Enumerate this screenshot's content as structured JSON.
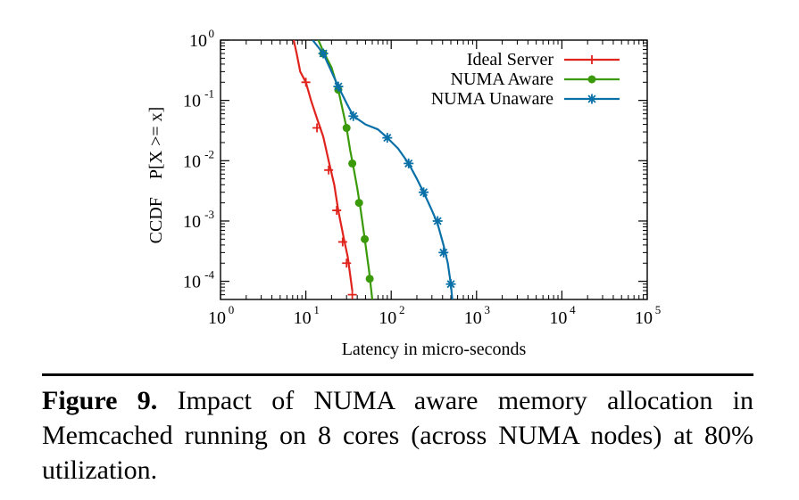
{
  "chart_data": {
    "type": "line",
    "x_scale": "log",
    "y_scale": "log",
    "xlim": [
      1,
      100000
    ],
    "ylim": [
      5e-05,
      1
    ],
    "xlabel": "Latency in micro-seconds",
    "ylabel": "CCDF    P[X >= x]",
    "x_ticks": [
      {
        "base": "10",
        "exp": "0",
        "value": 1
      },
      {
        "base": "10",
        "exp": "1",
        "value": 10
      },
      {
        "base": "10",
        "exp": "2",
        "value": 100
      },
      {
        "base": "10",
        "exp": "3",
        "value": 1000
      },
      {
        "base": "10",
        "exp": "4",
        "value": 10000
      },
      {
        "base": "10",
        "exp": "5",
        "value": 100000
      }
    ],
    "y_ticks": [
      {
        "base": "10",
        "exp": "0",
        "value": 1
      },
      {
        "base": "10",
        "exp": "-1",
        "value": 0.1
      },
      {
        "base": "10",
        "exp": "-2",
        "value": 0.01
      },
      {
        "base": "10",
        "exp": "-3",
        "value": 0.001
      },
      {
        "base": "10",
        "exp": "-4",
        "value": 0.0001
      }
    ],
    "legend_position": "top-right",
    "grid": false,
    "series": [
      {
        "name": "Ideal Server",
        "color": "#e0231c",
        "marker": "plus",
        "line": [
          [
            7.2,
            1
          ],
          [
            7.8,
            0.6
          ],
          [
            8.6,
            0.3
          ],
          [
            10,
            0.2
          ],
          [
            11.5,
            0.1
          ],
          [
            13.5,
            0.05
          ],
          [
            16,
            0.025
          ],
          [
            18.5,
            0.01
          ],
          [
            21.5,
            0.004
          ],
          [
            24,
            0.0015
          ],
          [
            28,
            0.0005
          ],
          [
            31,
            0.00025
          ],
          [
            35,
            7e-05
          ]
        ],
        "points": [
          [
            10,
            0.2
          ],
          [
            13.5,
            0.035
          ],
          [
            18.5,
            0.007
          ],
          [
            23,
            0.0015
          ],
          [
            27,
            0.00045
          ],
          [
            30,
            0.0002
          ],
          [
            35,
            6e-05
          ]
        ]
      },
      {
        "name": "NUMA Aware",
        "color": "#3a9a0a",
        "marker": "circle",
        "line": [
          [
            14,
            1
          ],
          [
            16,
            0.65
          ],
          [
            20,
            0.35
          ],
          [
            24,
            0.15
          ],
          [
            27,
            0.07
          ],
          [
            30,
            0.035
          ],
          [
            33,
            0.015
          ],
          [
            36,
            0.008
          ],
          [
            40,
            0.0035
          ],
          [
            44,
            0.0015
          ],
          [
            49,
            0.0005
          ],
          [
            55,
            0.00015
          ],
          [
            60,
            5e-05
          ]
        ],
        "points": [
          [
            16,
            0.6
          ],
          [
            24,
            0.15
          ],
          [
            30,
            0.035
          ],
          [
            35,
            0.009
          ],
          [
            42,
            0.002
          ],
          [
            49,
            0.0005
          ],
          [
            56,
            0.00011
          ]
        ]
      },
      {
        "name": "NUMA Unaware",
        "color": "#0a70a8",
        "marker": "star",
        "line": [
          [
            12,
            1
          ],
          [
            16,
            0.6
          ],
          [
            20,
            0.3
          ],
          [
            24,
            0.17
          ],
          [
            30,
            0.09
          ],
          [
            36,
            0.055
          ],
          [
            50,
            0.04
          ],
          [
            70,
            0.033
          ],
          [
            90,
            0.024
          ],
          [
            120,
            0.016
          ],
          [
            160,
            0.009
          ],
          [
            200,
            0.005
          ],
          [
            240,
            0.003
          ],
          [
            300,
            0.0015
          ],
          [
            350,
            0.0009
          ],
          [
            410,
            0.0004
          ],
          [
            460,
            0.0002
          ],
          [
            500,
            9e-05
          ],
          [
            520,
            5e-05
          ]
        ],
        "points": [
          [
            16,
            0.6
          ],
          [
            24,
            0.17
          ],
          [
            36,
            0.055
          ],
          [
            90,
            0.024
          ],
          [
            160,
            0.009
          ],
          [
            240,
            0.003
          ],
          [
            350,
            0.001
          ],
          [
            410,
            0.0003
          ],
          [
            500,
            9e-05
          ]
        ]
      }
    ]
  },
  "caption": {
    "label": "Figure 9.",
    "text": "Impact of NUMA aware memory allocation in Memcached running on 8 cores (across NUMA nodes) at 80% utilization."
  }
}
